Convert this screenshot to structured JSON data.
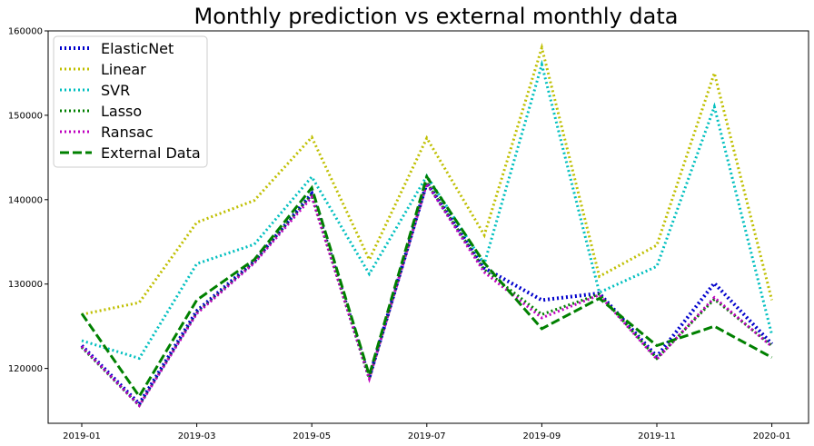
{
  "chart_data": {
    "type": "line",
    "title": "Monthly prediction vs external monthly data",
    "xlabel": "",
    "ylabel": "",
    "x": [
      "2019-01",
      "2019-02",
      "2019-03",
      "2019-04",
      "2019-05",
      "2019-06",
      "2019-07",
      "2019-08",
      "2019-09",
      "2019-10",
      "2019-11",
      "2019-12",
      "2020-01"
    ],
    "x_tick_labels": [
      "2019-01",
      "2019-03",
      "2019-05",
      "2019-07",
      "2019-09",
      "2019-11",
      "2020-01"
    ],
    "y_tick_labels": [
      "120000",
      "130000",
      "140000",
      "150000",
      "160000"
    ],
    "ylim": [
      113500,
      160000
    ],
    "grid": false,
    "legend_position": "top-left",
    "series": [
      {
        "name": "ElasticNet",
        "color": "#0000cc",
        "style": "dotted",
        "values": [
          122700,
          115800,
          126800,
          132700,
          140700,
          118900,
          142000,
          131900,
          128100,
          128900,
          121400,
          130100,
          122900
        ]
      },
      {
        "name": "Linear",
        "color": "#bfbf00",
        "style": "dotted",
        "values": [
          126400,
          127800,
          137300,
          139900,
          147400,
          132900,
          147300,
          135800,
          158000,
          130900,
          134600,
          155000,
          128100
        ]
      },
      {
        "name": "SVR",
        "color": "#00bfbf",
        "style": "dotted",
        "values": [
          123300,
          121200,
          132400,
          134700,
          142700,
          131200,
          142800,
          132400,
          156000,
          129000,
          132100,
          151000,
          124000
        ]
      },
      {
        "name": "Lasso",
        "color": "#008000",
        "style": "dotted",
        "values": [
          122500,
          115600,
          126600,
          132600,
          140600,
          118800,
          142000,
          131700,
          126400,
          128800,
          121200,
          128200,
          122700
        ]
      },
      {
        "name": "Ransac",
        "color": "#bf00bf",
        "style": "dotted",
        "values": [
          122600,
          115600,
          126500,
          132500,
          140300,
          118800,
          141900,
          131400,
          126000,
          128700,
          121100,
          128400,
          122600
        ]
      },
      {
        "name": "External Data",
        "color": "#008000",
        "style": "dashed",
        "values": [
          126500,
          116700,
          128100,
          132900,
          141400,
          119200,
          142700,
          132500,
          124700,
          128300,
          122700,
          125000,
          121300
        ]
      }
    ]
  }
}
